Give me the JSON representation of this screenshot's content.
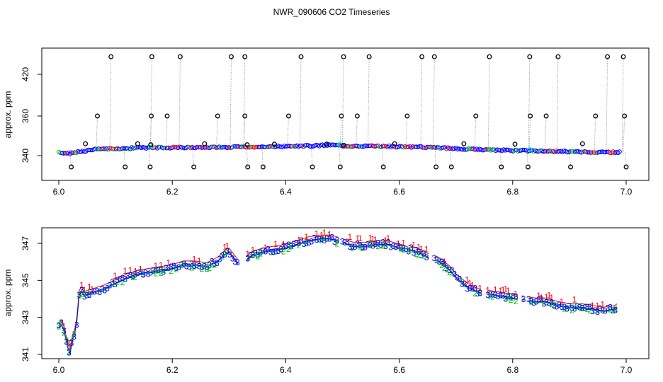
{
  "title": "NWR_090606  CO2 Timeseries",
  "colors": {
    "series_1": "#ff0000",
    "series_2": "#00cd00",
    "series_3": "#0000ff",
    "spike_marker": "#000000",
    "connector": "#808080",
    "highlight": "#00ffff"
  },
  "chart_data": [
    {
      "type": "scatter",
      "name": "raw-panel",
      "title": "NWR_090606  CO2 Timeseries",
      "xlabel": "",
      "ylabel": "approx. ppm",
      "xlim": [
        6.0,
        7.0
      ],
      "xticks": [
        6.0,
        6.2,
        6.4,
        6.6,
        6.8,
        7.0
      ],
      "xtick_labels": [
        "6.0",
        "6.2",
        "6.4",
        "6.6",
        "6.8",
        "7.0"
      ],
      "ylim": [
        331,
        440
      ],
      "yticks": [
        340,
        360,
        420
      ],
      "ytick_labels": [
        "340",
        "360",
        "420"
      ],
      "baseline": {
        "x": [
          6.0,
          6.02,
          6.04,
          6.06,
          6.1,
          6.15,
          6.2,
          6.3,
          6.4,
          6.45,
          6.48,
          6.5,
          6.55,
          6.6,
          6.65,
          6.7,
          6.75,
          6.8,
          6.85,
          6.9,
          6.95,
          6.99
        ],
        "y": [
          341.5,
          341.2,
          342,
          343,
          343.5,
          344,
          344,
          344.3,
          344.6,
          345,
          345.4,
          345,
          344.8,
          344.5,
          344.2,
          343.5,
          343,
          342.6,
          342.3,
          342,
          341.8,
          341.7
        ]
      },
      "spikes_high": [
        6.09,
        6.162,
        6.212,
        6.302,
        6.326,
        6.425,
        6.5,
        6.545,
        6.638,
        6.66,
        6.757,
        6.828,
        6.878,
        6.965,
        6.993
      ],
      "spikes_360": [
        6.066,
        6.161,
        6.189,
        6.278,
        6.326,
        6.403,
        6.496,
        6.524,
        6.612,
        6.733,
        6.829,
        6.857,
        6.944,
        6.995
      ],
      "spikes_low": [
        6.02,
        6.115,
        6.159,
        6.236,
        6.331,
        6.358,
        6.445,
        6.494,
        6.57,
        6.663,
        6.69,
        6.778,
        6.825,
        6.9,
        6.998
      ],
      "spikes_small": [
        {
          "x": 6.045,
          "y": 346
        },
        {
          "x": 6.137,
          "y": 346
        },
        {
          "x": 6.255,
          "y": 346
        },
        {
          "x": 6.378,
          "y": 345.8
        },
        {
          "x": 6.47,
          "y": 345.8
        },
        {
          "x": 6.59,
          "y": 346
        },
        {
          "x": 6.712,
          "y": 346
        },
        {
          "x": 6.802,
          "y": 345.8
        },
        {
          "x": 6.921,
          "y": 346
        },
        {
          "x": 6.16,
          "y": 345.5
        },
        {
          "x": 6.33,
          "y": 345.5
        },
        {
          "x": 6.5,
          "y": 345.3
        }
      ],
      "highlight_x": [
        6.165,
        6.495,
        6.83
      ]
    },
    {
      "type": "scatter",
      "name": "smoothed-panel",
      "xlabel": "",
      "ylabel": "approx. ppm",
      "xlim": [
        6.0,
        7.0
      ],
      "xticks": [
        6.0,
        6.2,
        6.4,
        6.6,
        6.8,
        7.0
      ],
      "xtick_labels": [
        "6.0",
        "6.2",
        "6.4",
        "6.6",
        "6.8",
        "7.0"
      ],
      "ylim": [
        341,
        347.8
      ],
      "yticks": [
        341,
        343,
        345,
        347
      ],
      "ytick_labels": [
        "341",
        "343",
        "345",
        "347"
      ],
      "series_labels": [
        "1",
        "2",
        "3"
      ],
      "gaps": [
        [
          6.318,
          6.33
        ],
        [
          6.492,
          6.498
        ],
        [
          6.608,
          6.612
        ],
        [
          6.652,
          6.66
        ],
        [
          6.745,
          6.752
        ],
        [
          6.808,
          6.815
        ],
        [
          6.82,
          6.825
        ]
      ],
      "x": [
        6.0,
        6.005,
        6.01,
        6.015,
        6.02,
        6.022,
        6.025,
        6.03,
        6.033,
        6.036,
        6.04,
        6.045,
        6.05,
        6.06,
        6.08,
        6.1,
        6.12,
        6.14,
        6.16,
        6.18,
        6.2,
        6.22,
        6.24,
        6.26,
        6.28,
        6.29,
        6.3,
        6.31,
        6.32,
        6.34,
        6.36,
        6.38,
        6.4,
        6.42,
        6.44,
        6.46,
        6.48,
        6.49,
        6.5,
        6.52,
        6.54,
        6.56,
        6.58,
        6.6,
        6.62,
        6.64,
        6.65,
        6.67,
        6.69,
        6.7,
        6.72,
        6.74,
        6.76,
        6.78,
        6.8,
        6.82,
        6.84,
        6.86,
        6.88,
        6.9,
        6.92,
        6.94,
        6.96,
        6.98,
        6.99
      ],
      "y": [
        342.5,
        342.7,
        342.3,
        341.5,
        341.1,
        341.6,
        342,
        342.3,
        343.2,
        344.3,
        344.5,
        344.2,
        344.3,
        344.4,
        344.6,
        344.9,
        345.2,
        345.4,
        345.5,
        345.6,
        345.7,
        345.9,
        345.9,
        345.8,
        346.1,
        346.4,
        346.6,
        346.2,
        345.8,
        346.4,
        346.6,
        346.7,
        346.8,
        347,
        347.2,
        347.3,
        347.3,
        347.2,
        347.1,
        346.9,
        346.9,
        347,
        347,
        346.8,
        346.7,
        346.5,
        346.3,
        346.1,
        345.6,
        345.2,
        344.7,
        344.4,
        344.3,
        344.2,
        344.1,
        344,
        343.9,
        343.9,
        343.7,
        343.6,
        343.6,
        343.5,
        343.4,
        343.5,
        343.7
      ]
    }
  ]
}
